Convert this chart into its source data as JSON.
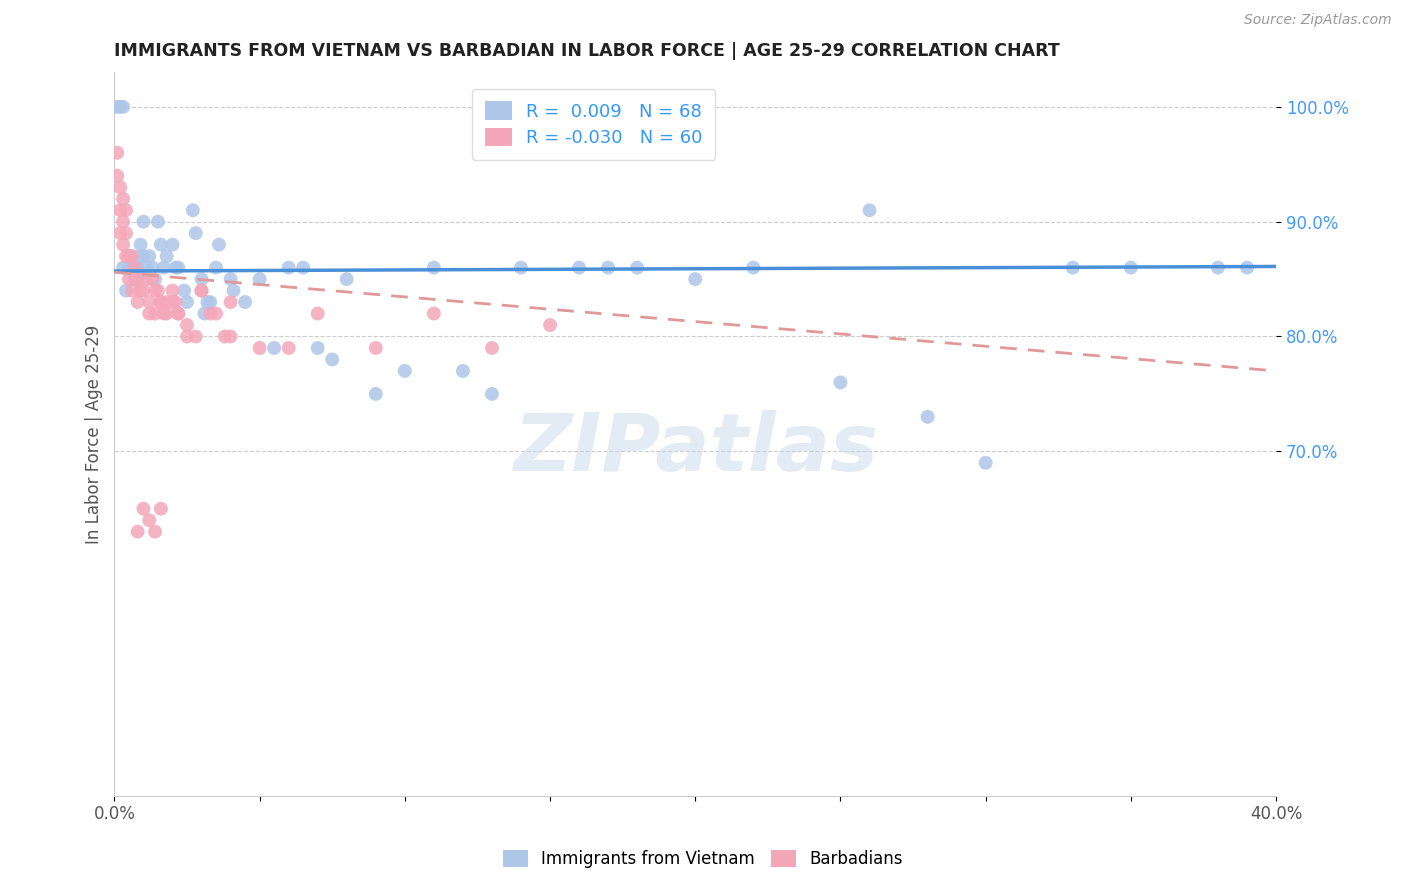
{
  "title": "IMMIGRANTS FROM VIETNAM VS BARBADIAN IN LABOR FORCE | AGE 25-29 CORRELATION CHART",
  "source": "Source: ZipAtlas.com",
  "ylabel": "In Labor Force | Age 25-29",
  "x_min": 0.0,
  "x_max": 0.4,
  "y_min": 0.4,
  "y_max": 1.03,
  "vietnam_R": 0.009,
  "vietnam_N": 68,
  "barbadian_R": -0.03,
  "barbadian_N": 60,
  "vietnam_color": "#aec6e8",
  "barbadian_color": "#f4a7b9",
  "vietnam_line_color": "#4a90d9",
  "barbadian_line_color": "#e09898",
  "legend_label_vietnam": "Immigrants from Vietnam",
  "legend_label_barbadian": "Barbadians",
  "watermark": "ZIPatlas",
  "vietnam_scatter_x": [
    0.001,
    0.002,
    0.003,
    0.003,
    0.004,
    0.005,
    0.005,
    0.006,
    0.006,
    0.007,
    0.007,
    0.008,
    0.008,
    0.009,
    0.009,
    0.01,
    0.01,
    0.011,
    0.012,
    0.013,
    0.014,
    0.015,
    0.016,
    0.017,
    0.018,
    0.02,
    0.021,
    0.022,
    0.024,
    0.025,
    0.027,
    0.028,
    0.03,
    0.031,
    0.032,
    0.033,
    0.035,
    0.036,
    0.04,
    0.041,
    0.045,
    0.05,
    0.055,
    0.06,
    0.065,
    0.07,
    0.075,
    0.08,
    0.09,
    0.1,
    0.11,
    0.12,
    0.13,
    0.14,
    0.16,
    0.18,
    0.2,
    0.22,
    0.25,
    0.26,
    0.28,
    0.3,
    0.33,
    0.35,
    0.38,
    0.39,
    0.005,
    0.17
  ],
  "vietnam_scatter_y": [
    1.0,
    1.0,
    1.0,
    0.86,
    0.84,
    0.87,
    0.86,
    0.86,
    0.87,
    0.85,
    0.86,
    0.86,
    0.86,
    0.87,
    0.88,
    0.9,
    0.87,
    0.86,
    0.87,
    0.86,
    0.85,
    0.9,
    0.88,
    0.86,
    0.87,
    0.88,
    0.86,
    0.86,
    0.84,
    0.83,
    0.91,
    0.89,
    0.85,
    0.82,
    0.83,
    0.83,
    0.86,
    0.88,
    0.85,
    0.84,
    0.83,
    0.85,
    0.79,
    0.86,
    0.86,
    0.79,
    0.78,
    0.85,
    0.75,
    0.77,
    0.86,
    0.77,
    0.75,
    0.86,
    0.86,
    0.86,
    0.85,
    0.86,
    0.76,
    0.91,
    0.73,
    0.69,
    0.86,
    0.86,
    0.86,
    0.86,
    0.87,
    0.86
  ],
  "barbadian_scatter_x": [
    0.001,
    0.001,
    0.002,
    0.002,
    0.002,
    0.003,
    0.003,
    0.003,
    0.004,
    0.004,
    0.004,
    0.005,
    0.005,
    0.006,
    0.006,
    0.007,
    0.007,
    0.008,
    0.008,
    0.009,
    0.01,
    0.011,
    0.012,
    0.013,
    0.014,
    0.015,
    0.016,
    0.017,
    0.018,
    0.02,
    0.021,
    0.022,
    0.025,
    0.028,
    0.03,
    0.033,
    0.035,
    0.038,
    0.04,
    0.012,
    0.014,
    0.016,
    0.018,
    0.02,
    0.022,
    0.025,
    0.03,
    0.04,
    0.05,
    0.06,
    0.07,
    0.09,
    0.11,
    0.13,
    0.15,
    0.008,
    0.01,
    0.012,
    0.014,
    0.016
  ],
  "barbadian_scatter_y": [
    0.96,
    0.94,
    0.93,
    0.91,
    0.89,
    0.92,
    0.9,
    0.88,
    0.91,
    0.89,
    0.87,
    0.87,
    0.85,
    0.87,
    0.84,
    0.86,
    0.85,
    0.85,
    0.83,
    0.84,
    0.84,
    0.85,
    0.83,
    0.85,
    0.84,
    0.84,
    0.83,
    0.82,
    0.83,
    0.84,
    0.83,
    0.82,
    0.81,
    0.8,
    0.84,
    0.82,
    0.82,
    0.8,
    0.8,
    0.82,
    0.82,
    0.83,
    0.82,
    0.83,
    0.82,
    0.8,
    0.84,
    0.83,
    0.79,
    0.79,
    0.82,
    0.79,
    0.82,
    0.79,
    0.81,
    0.63,
    0.65,
    0.64,
    0.63,
    0.65
  ],
  "vietnam_line_x": [
    0.0,
    0.4
  ],
  "vietnam_line_y": [
    0.857,
    0.861
  ],
  "barbadian_line_x": [
    0.0,
    0.4
  ],
  "barbadian_line_y": [
    0.856,
    0.77
  ]
}
